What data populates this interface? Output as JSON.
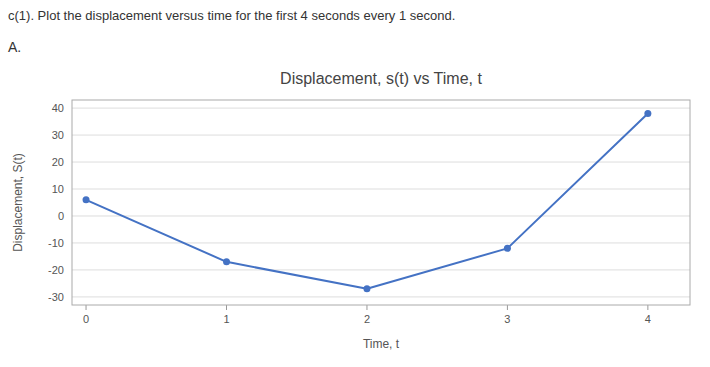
{
  "chart_data": {
    "type": "line",
    "title": "Displacement, s(t) vs Time, t",
    "annotations": [
      "c(1). Plot the displacement versus time for the first 4 seconds every 1 second.",
      "A."
    ],
    "xlabel": "Time, t",
    "ylabel": "Displacement, S(t)",
    "x": [
      0,
      1,
      2,
      3,
      4
    ],
    "values": [
      6,
      -17,
      -27,
      -12,
      38
    ],
    "color": "#4472C4",
    "marker": "circle",
    "xlim": [
      -0.1,
      4.3
    ],
    "ylim": [
      -33,
      43
    ],
    "xticks": [
      0,
      1,
      2,
      3,
      4
    ],
    "yticks": [
      -30,
      -20,
      -10,
      0,
      10,
      20,
      30,
      40
    ],
    "grid": true
  }
}
